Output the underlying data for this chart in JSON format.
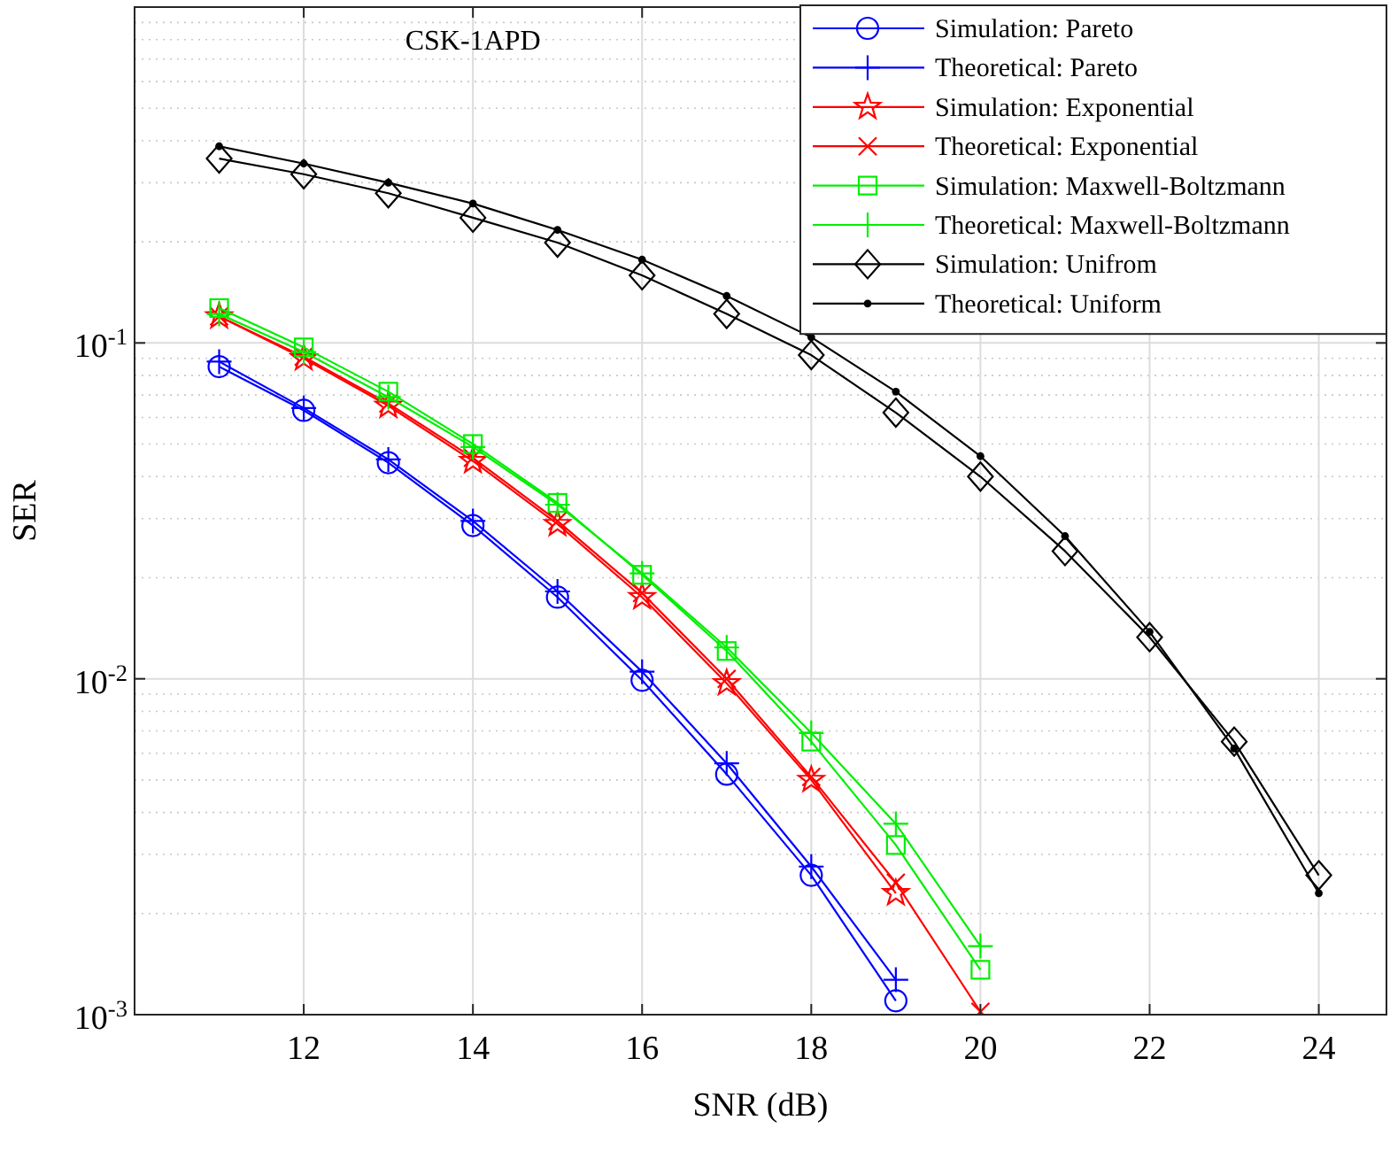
{
  "chart_data": {
    "type": "line",
    "title": "CSK-1APD",
    "xlabel": "SNR (dB)",
    "ylabel": "SER",
    "log": "y",
    "grid": true,
    "legend": "top right",
    "xlim": [
      10,
      24.8
    ],
    "xticks": [
      12,
      14,
      16,
      18,
      20,
      22,
      24
    ],
    "ylim": [
      0.001,
      1
    ],
    "yticks": [
      {
        "value": 0.001,
        "label": "10$^{-3}$"
      },
      {
        "value": 0.01,
        "label": "10$^{-2}$"
      },
      {
        "value": 0.1,
        "label": "10$^{-1}$"
      },
      {
        "value": 1,
        "label": null
      }
    ],
    "series": [
      {
        "name": "Simulation: Pareto",
        "color": "#0000ff",
        "marker": "circle",
        "x": [
          11,
          12,
          13,
          14,
          15,
          16,
          17,
          18,
          19
        ],
        "values": [
          0.085,
          0.063,
          0.044,
          0.0286,
          0.0175,
          0.0099,
          0.0052,
          0.0026,
          0.0011
        ]
      },
      {
        "name": "Theoretical: Pareto",
        "color": "#0000ff",
        "marker": "cross",
        "x": [
          11,
          12,
          13,
          14,
          15,
          16,
          17,
          18,
          19
        ],
        "values": [
          0.088,
          0.064,
          0.045,
          0.0295,
          0.0182,
          0.0105,
          0.0056,
          0.00276,
          0.00127
        ]
      },
      {
        "name": "Simulation: Exponential",
        "color": "#ff0000",
        "marker": "star",
        "x": [
          11,
          12,
          13,
          14,
          15,
          16,
          17,
          18,
          19
        ],
        "values": [
          0.12,
          0.09,
          0.065,
          0.0445,
          0.0289,
          0.0175,
          0.0097,
          0.005,
          0.0023
        ]
      },
      {
        "name": "Theoretical: Exponential",
        "color": "#ff0000",
        "marker": "x",
        "x": [
          11,
          12,
          13,
          14,
          15,
          16,
          17,
          18,
          19,
          20
        ],
        "values": [
          0.12,
          0.091,
          0.066,
          0.0455,
          0.0295,
          0.018,
          0.01,
          0.0051,
          0.00247,
          0.00102
        ]
      },
      {
        "name": "Simulation: Maxwell-Boltzmann",
        "color": "#00ee00",
        "marker": "square",
        "x": [
          11,
          12,
          13,
          14,
          15,
          16,
          17,
          18,
          19,
          20
        ],
        "values": [
          0.127,
          0.097,
          0.0716,
          0.05,
          0.0334,
          0.0204,
          0.0121,
          0.0065,
          0.0032,
          0.00136
        ]
      },
      {
        "name": "Theoretical: Maxwell-Boltzmann",
        "color": "#00ee00",
        "marker": "cross",
        "x": [
          11,
          12,
          13,
          14,
          15,
          16,
          17,
          18,
          19,
          20
        ],
        "values": [
          0.122,
          0.094,
          0.069,
          0.049,
          0.033,
          0.0206,
          0.0124,
          0.0069,
          0.0037,
          0.0016
        ]
      },
      {
        "name": "Simulation: Unifrom",
        "color": "#000000",
        "marker": "diamond",
        "x": [
          11,
          12,
          13,
          14,
          15,
          16,
          17,
          18,
          19,
          20,
          21,
          22,
          23,
          24
        ],
        "values": [
          0.354,
          0.318,
          0.279,
          0.236,
          0.199,
          0.159,
          0.122,
          0.092,
          0.062,
          0.04,
          0.024,
          0.0133,
          0.0065,
          0.0026
        ]
      },
      {
        "name": "Theoretical: Uniform",
        "color": "#000000",
        "marker": "point",
        "x": [
          11,
          12,
          13,
          14,
          15,
          16,
          17,
          18,
          19,
          20,
          21,
          22,
          23,
          24
        ],
        "values": [
          0.385,
          0.342,
          0.3,
          0.26,
          0.217,
          0.177,
          0.138,
          0.104,
          0.0716,
          0.046,
          0.0266,
          0.0138,
          0.0062,
          0.0023
        ]
      }
    ]
  }
}
